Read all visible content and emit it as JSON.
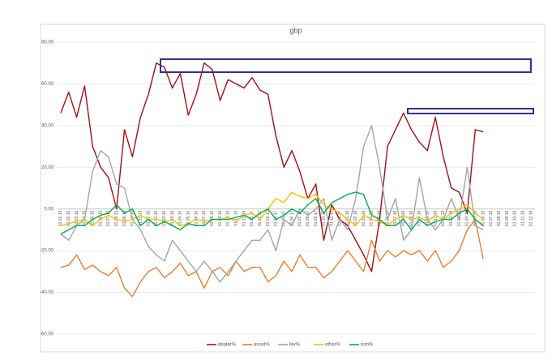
{
  "chart_data": {
    "type": "line",
    "title": "gbp",
    "categories": [
      "01.01.15",
      "01.02.15",
      "01.03.15",
      "01.04.15",
      "01.05.15",
      "01.06.15",
      "01.07.15",
      "01.08.15",
      "01.09.15",
      "01.10.15",
      "01.11.15",
      "01.12.15",
      "01.01.16",
      "01.02.16",
      "01.03.16",
      "01.04.16",
      "01.05.16",
      "01.06.16",
      "01.07.16",
      "01.08.16",
      "01.09.16",
      "01.10.16",
      "01.11.16",
      "01.12.16",
      "01.01.17",
      "01.02.17",
      "01.03.17",
      "01.04.17",
      "01.05.17",
      "01.06.17",
      "01.07.17",
      "01.08.17",
      "01.09.17",
      "01.10.17",
      "01.11.17",
      "01.12.17",
      "01.01.18",
      "01.02.18",
      "01.03.18",
      "01.04.18",
      "01.05.18",
      "01.06.18",
      "01.07.18",
      "01.08.18",
      "01.09.18",
      "01.10.18",
      "01.11.18",
      "01.12.18",
      "01.01.19",
      "01.02.19",
      "01.03.19",
      "01.04.19",
      "01.05.19",
      "01.06.19",
      "01.07.19",
      "01.08.19",
      "01.09.19",
      "01.10.19",
      "01.11.19",
      "01.12.19"
    ],
    "series": [
      {
        "name": "dealer%",
        "color": "#a50f15",
        "values": [
          46,
          56,
          44,
          59,
          30,
          20,
          15,
          0,
          38,
          25,
          44,
          55,
          70,
          68,
          58,
          65,
          45,
          55,
          70,
          67,
          52,
          62,
          60,
          58,
          63,
          57,
          55,
          35,
          20,
          28,
          18,
          5,
          12,
          -15,
          2,
          -5,
          -8,
          -15,
          -22,
          -30,
          -5,
          30,
          38,
          46,
          38,
          32,
          28,
          44,
          25,
          10,
          8,
          -2,
          38,
          37,
          null,
          null,
          null,
          null,
          null,
          null
        ]
      },
      {
        "name": "asset%",
        "color": "#ed7d31",
        "values": [
          -28,
          -27,
          -22,
          -29,
          -27,
          -30,
          -32,
          -28,
          -38,
          -42,
          -35,
          -30,
          -28,
          -33,
          -30,
          -26,
          -32,
          -30,
          -38,
          -30,
          -28,
          -32,
          -25,
          -30,
          -28,
          -28,
          -35,
          -32,
          -25,
          -30,
          -22,
          -28,
          -28,
          -33,
          -30,
          -25,
          -20,
          -25,
          -30,
          -15,
          -25,
          -20,
          -23,
          -20,
          -22,
          -20,
          -25,
          -20,
          -28,
          -25,
          -20,
          -10,
          -5,
          -24,
          null,
          null,
          null,
          null,
          null,
          null
        ]
      },
      {
        "name": "lev%",
        "color": "#a5a5a5",
        "values": [
          -12,
          -15,
          -8,
          -5,
          18,
          28,
          25,
          12,
          10,
          -5,
          -10,
          -18,
          -22,
          -25,
          -15,
          -20,
          -25,
          -30,
          -25,
          -30,
          -35,
          -30,
          -25,
          -20,
          -15,
          -15,
          -10,
          -20,
          -5,
          -8,
          0,
          -3,
          0,
          5,
          -15,
          -5,
          -10,
          5,
          30,
          40,
          20,
          -5,
          5,
          -15,
          -10,
          15,
          -5,
          -10,
          -5,
          5,
          -5,
          20,
          -8,
          -10,
          null,
          null,
          null,
          null,
          null,
          null
        ]
      },
      {
        "name": "other%",
        "color": "#ffc000",
        "values": [
          -8,
          -7,
          -6,
          -5,
          -8,
          -5,
          -3,
          -5,
          -6,
          -5,
          -3,
          -5,
          -5,
          -6,
          -5,
          -8,
          -7,
          -5,
          -6,
          -5,
          -5,
          -4,
          -6,
          -3,
          -2,
          -5,
          0,
          5,
          3,
          8,
          6,
          5,
          7,
          2,
          0,
          -2,
          -5,
          -8,
          -3,
          -5,
          -6,
          -8,
          -5,
          -3,
          -5,
          -4,
          -6,
          -3,
          -5,
          -2,
          0,
          2,
          -2,
          -5,
          null,
          null,
          null,
          null,
          null,
          null
        ]
      },
      {
        "name": "non%",
        "color": "#00b050",
        "values": [
          -12,
          -10,
          -8,
          -8,
          -5,
          -3,
          -2,
          2,
          -2,
          0,
          -8,
          -5,
          -8,
          -6,
          -8,
          -10,
          -7,
          -8,
          -8,
          -5,
          -5,
          -5,
          -4,
          -3,
          -5,
          -2,
          0,
          -5,
          -3,
          0,
          -2,
          2,
          5,
          -2,
          3,
          5,
          7,
          8,
          7,
          -3,
          -5,
          -8,
          -8,
          -5,
          -10,
          -5,
          -8,
          -6,
          -5,
          -5,
          -2,
          0,
          -5,
          -8,
          null,
          null,
          null,
          null,
          null,
          null
        ]
      }
    ],
    "ylim": [
      -60,
      80
    ],
    "yticks": [
      {
        "value": -60,
        "label": "-60.00"
      },
      {
        "value": -40,
        "label": "-40.00"
      },
      {
        "value": -20,
        "label": "-20.00"
      },
      {
        "value": 0,
        "label": "0.00"
      },
      {
        "value": 20,
        "label": "20.00"
      },
      {
        "value": 40,
        "label": "40.00"
      },
      {
        "value": 60,
        "label": "60.00"
      },
      {
        "value": 80,
        "label": "80.00"
      }
    ],
    "grid": true,
    "legend": "bottom"
  }
}
